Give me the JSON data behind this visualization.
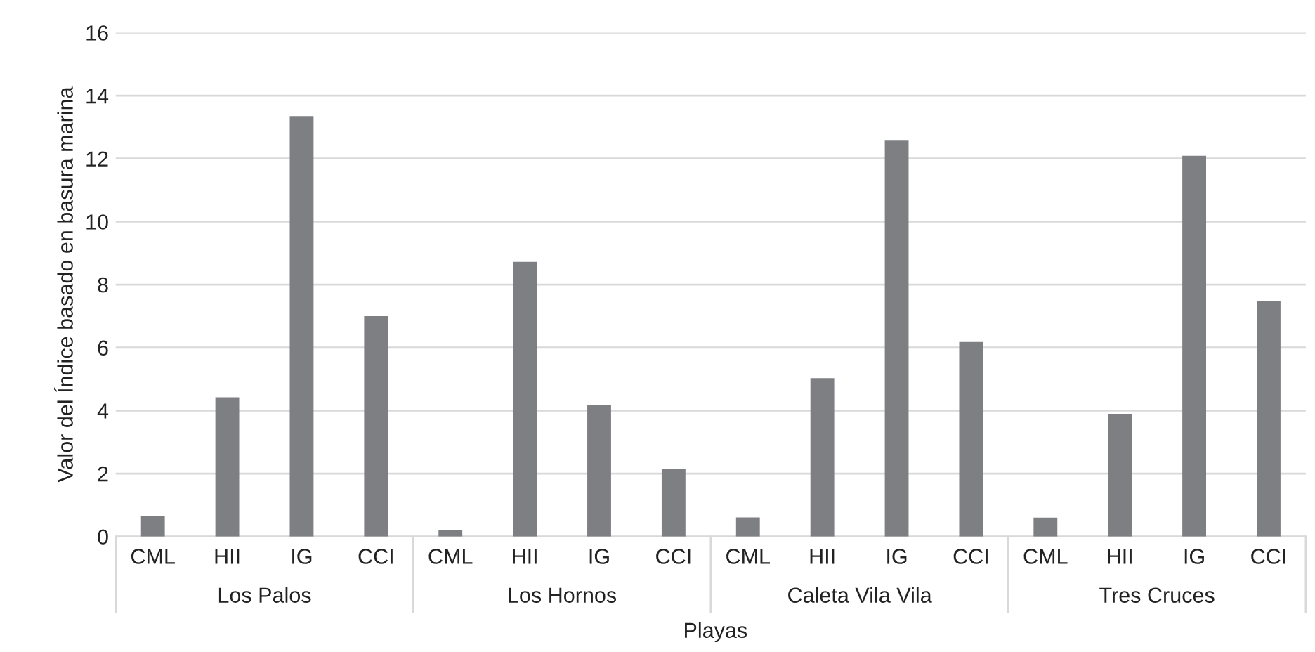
{
  "chart_data": {
    "type": "bar",
    "categories": [
      "CML",
      "HII",
      "IG",
      "CCI",
      "CML",
      "HII",
      "IG",
      "CCI",
      "CML",
      "HII",
      "IG",
      "CCI",
      "CML",
      "HII",
      "IG",
      "CCI"
    ],
    "values": [
      0.65,
      4.42,
      13.35,
      7.0,
      0.2,
      8.72,
      4.17,
      2.14,
      0.61,
      5.03,
      12.59,
      6.18,
      0.6,
      3.9,
      12.09,
      7.48
    ],
    "color": "#7e7f83",
    "annotations": [
      "Los Palos",
      "Los Hornos",
      "Caleta Vila Vila",
      "Tres Cruces"
    ],
    "xlabel": "Playas",
    "ylabel": "Valor del Índice basado en basura marina",
    "ylim": [
      0,
      16
    ],
    "yticks": [
      0,
      2,
      4,
      6,
      8,
      10,
      12,
      14,
      16
    ],
    "grid": "y"
  }
}
